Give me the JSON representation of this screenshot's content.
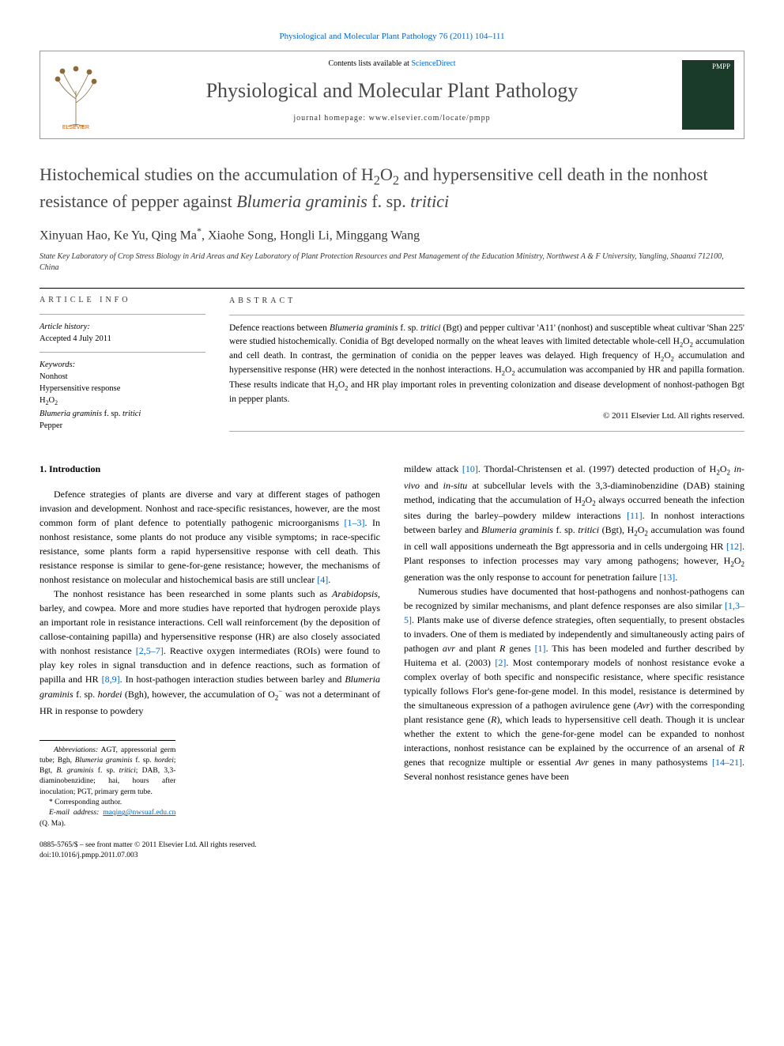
{
  "journal_ref": "Physiological and Molecular Plant Pathology 76 (2011) 104–111",
  "header": {
    "contents_prefix": "Contents lists available at ",
    "contents_link": "ScienceDirect",
    "journal_name": "Physiological and Molecular Plant Pathology",
    "homepage_prefix": "journal homepage: ",
    "homepage_url": "www.elsevier.com/locate/pmpp",
    "publisher_label": "ELSEVIER",
    "cover_label": "PMPP"
  },
  "title_html": "Histochemical studies on the accumulation of H<sub>2</sub>O<sub>2</sub> and hypersensitive cell death in the nonhost resistance of pepper against <em>Blumeria graminis</em> f. sp. <em>tritici</em>",
  "authors_html": "Xinyuan Hao, Ke Yu, Qing Ma<sup>*</sup>, Xiaohe Song, Hongli Li, Minggang Wang",
  "affiliation": "State Key Laboratory of Crop Stress Biology in Arid Areas and Key Laboratory of Plant Protection Resources and Pest Management of the Education Ministry, Northwest A & F University, Yangling, Shaanxi 712100, China",
  "article_info": {
    "heading": "ARTICLE INFO",
    "history_label": "Article history:",
    "history_value": "Accepted 4 July 2011",
    "keywords_label": "Keywords:",
    "keywords": [
      "Nonhost",
      "Hypersensitive response",
      "H<sub>2</sub>O<sub>2</sub>",
      "<em>Blumeria graminis</em> f. sp. <em>tritici</em>",
      "Pepper"
    ]
  },
  "abstract": {
    "heading": "ABSTRACT",
    "text_html": "Defence reactions between <em>Blumeria graminis</em> f. sp. <em>tritici</em> (Bgt) and pepper cultivar 'A11' (nonhost) and susceptible wheat cultivar 'Shan 225' were studied histochemically. Conidia of Bgt developed normally on the wheat leaves with limited detectable whole-cell H<sub>2</sub>O<sub>2</sub> accumulation and cell death. In contrast, the germination of conidia on the pepper leaves was delayed. High frequency of H<sub>2</sub>O<sub>2</sub> accumulation and hypersensitive response (HR) were detected in the nonhost interactions. H<sub>2</sub>O<sub>2</sub> accumulation was accompanied by HR and papilla formation. These results indicate that H<sub>2</sub>O<sub>2</sub> and HR play important roles in preventing colonization and disease development of nonhost-pathogen Bgt in pepper plants.",
    "copyright": "© 2011 Elsevier Ltd. All rights reserved."
  },
  "body": {
    "section_heading": "1. Introduction",
    "left_paras": [
      "Defence strategies of plants are diverse and vary at different stages of pathogen invasion and development. Nonhost and race-specific resistances, however, are the most common form of plant defence to potentially pathogenic microorganisms <span class=\"ref-link\">[1–3]</span>. In nonhost resistance, some plants do not produce any visible symptoms; in race-specific resistance, some plants form a rapid hypersensitive response with cell death. This resistance response is similar to gene-for-gene resistance; however, the mechanisms of nonhost resistance on molecular and histochemical basis are still unclear <span class=\"ref-link\">[4]</span>.",
      "The nonhost resistance has been researched in some plants such as <em>Arabidopsis</em>, barley, and cowpea. More and more studies have reported that hydrogen peroxide plays an important role in resistance interactions. Cell wall reinforcement (by the deposition of callose-containing papilla) and hypersensitive response (HR) are also closely associated with nonhost resistance <span class=\"ref-link\">[2,5–7]</span>. Reactive oxygen intermediates (ROIs) were found to play key roles in signal transduction and in defence reactions, such as formation of papilla and HR <span class=\"ref-link\">[8,9]</span>. In host-pathogen interaction studies between barley and <em>Blumeria graminis</em> f. sp. <em>hordei</em> (Bgh), however, the accumulation of O<sub>2</sub><sup>−</sup> was not a determinant of HR in response to powdery"
    ],
    "right_paras": [
      "mildew attack <span class=\"ref-link\">[10]</span>. Thordal-Christensen et al. (1997) detected production of H<sub>2</sub>O<sub>2</sub> <em>in-vivo</em> and <em>in-situ</em> at subcellular levels with the 3,3-diaminobenzidine (DAB) staining method, indicating that the accumulation of H<sub>2</sub>O<sub>2</sub> always occurred beneath the infection sites during the barley–powdery mildew interactions <span class=\"ref-link\">[11]</span>. In nonhost interactions between barley and <em>Blumeria graminis</em> f. sp. <em>tritici</em> (Bgt), H<sub>2</sub>O<sub>2</sub> accumulation was found in cell wall appositions underneath the Bgt appressoria and in cells undergoing HR <span class=\"ref-link\">[12]</span>. Plant responses to infection processes may vary among pathogens; however, H<sub>2</sub>O<sub>2</sub> generation was the only response to account for penetration failure <span class=\"ref-link\">[13]</span>.",
      "Numerous studies have documented that host-pathogens and nonhost-pathogens can be recognized by similar mechanisms, and plant defence responses are also similar <span class=\"ref-link\">[1,3–5]</span>. Plants make use of diverse defence strategies, often sequentially, to present obstacles to invaders. One of them is mediated by independently and simultaneously acting pairs of pathogen <em>avr</em> and plant <em>R</em> genes <span class=\"ref-link\">[1]</span>. This has been modeled and further described by Huitema et al. (2003) <span class=\"ref-link\">[2]</span>. Most contemporary models of nonhost resistance evoke a complex overlay of both specific and nonspecific resistance, where specific resistance typically follows Flor's gene-for-gene model. In this model, resistance is determined by the simultaneous expression of a pathogen avirulence gene (<em>Avr</em>) with the corresponding plant resistance gene (<em>R</em>), which leads to hypersensitive cell death. Though it is unclear whether the extent to which the gene-for-gene model can be expanded to nonhost interactions, nonhost resistance can be explained by the occurrence of an arsenal of <em>R</em> genes that recognize multiple or essential <em>Avr</em> genes in many pathosystems <span class=\"ref-link\">[14–21]</span>. Several nonhost resistance genes have been"
    ]
  },
  "footnotes": {
    "abbrev_html": "<em>Abbreviations:</em> AGT, appressorial germ tube; Bgh, <em>Blumeria graminis</em> f. sp. <em>hordei</em>; Bgt, <em>B. graminis</em> f. sp. <em>tritici</em>; DAB, 3,3-diaminobenzidine; hai, hours after inoculation; PGT, primary germ tube.",
    "corr_label": "* Corresponding author.",
    "email_label": "E-mail address: ",
    "email_value": "maqing@nwsuaf.edu.cn",
    "email_who": " (Q. Ma)."
  },
  "footer": {
    "front_matter": "0885-5765/$ – see front matter © 2011 Elsevier Ltd. All rights reserved.",
    "doi": "doi:10.1016/j.pmpp.2011.07.003"
  },
  "colors": {
    "link": "#0066cc",
    "text": "#000000",
    "title": "#454545",
    "journal": "#4a4a4a"
  }
}
